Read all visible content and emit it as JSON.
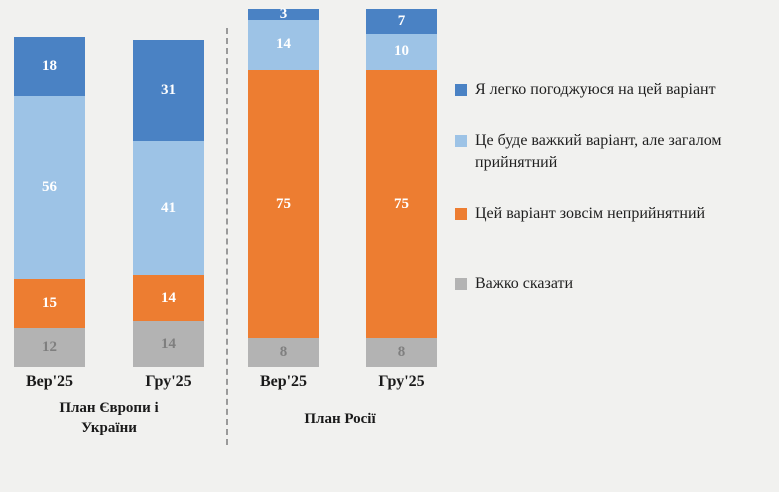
{
  "background_color": "#f1f1ef",
  "chart_data": {
    "type": "bar",
    "stacked": true,
    "unit": "%",
    "grid": false,
    "legend_position": "right",
    "ylim": [
      0,
      100
    ],
    "categories": [
      "Вер'25",
      "Гру'25",
      "Вер'25",
      "Гру'25"
    ],
    "groups": [
      {
        "label": "План Європи і України",
        "categories": [
          "Вер'25",
          "Гру'25"
        ]
      },
      {
        "label": "План Росії",
        "categories": [
          "Вер'25",
          "Гру'25"
        ]
      }
    ],
    "series": [
      {
        "name": "Я легко погоджуюся на цей варіант",
        "color": "#4a82c4",
        "label_color": "#ffffff",
        "values": [
          18,
          31,
          3,
          7
        ]
      },
      {
        "name": "Це буде важкий варіант, але загалом прийнятний",
        "color": "#9dc3e6",
        "label_color": "#ffffff",
        "values": [
          56,
          41,
          14,
          10
        ]
      },
      {
        "name": "Цей варіант зовсім неприйнятний",
        "color": "#ed7d31",
        "label_color": "#ffffff",
        "values": [
          15,
          14,
          75,
          75
        ]
      },
      {
        "name": "Важко сказати",
        "color": "#b3b3b3",
        "label_color": "#7f7f7f",
        "values": [
          12,
          14,
          8,
          8
        ]
      }
    ]
  }
}
